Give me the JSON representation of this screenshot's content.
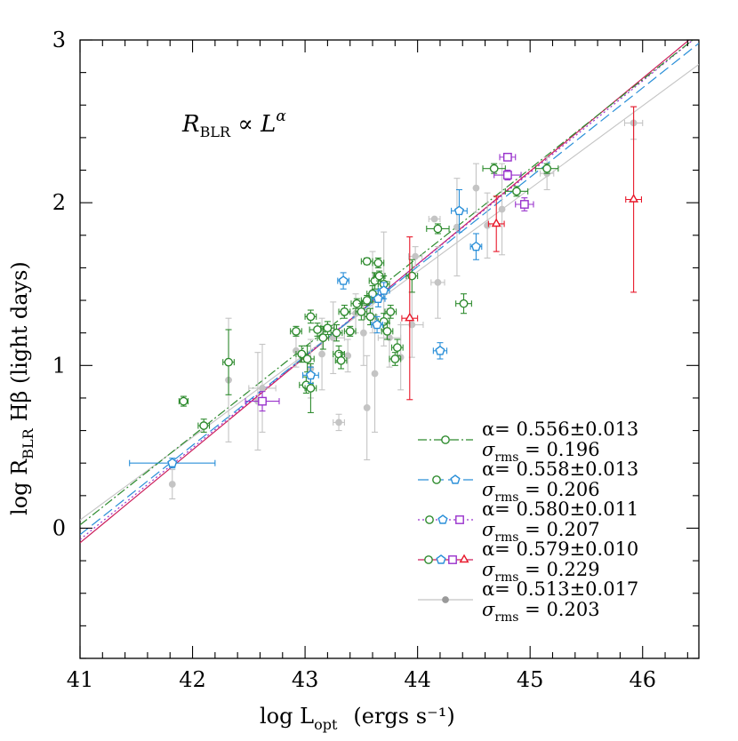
{
  "chart_data": {
    "type": "scatter",
    "xlabel": {
      "main": "log L",
      "sub": "opt",
      "unit": "(ergs s⁻¹)"
    },
    "ylabel": {
      "main": "log R",
      "sub": "BLR",
      "tail": "Hβ  (light days)"
    },
    "annotation": {
      "r": "R",
      "sub": "BLR",
      "rel": " ∝ L",
      "sup": "α"
    },
    "xlim": [
      41,
      46.5
    ],
    "ylim": [
      -0.8,
      3
    ],
    "xticks": [
      41,
      42,
      43,
      44,
      45,
      46
    ],
    "xtick_labels": [
      "41",
      "42",
      "43",
      "44",
      "45",
      "46"
    ],
    "yticks": [
      0,
      1,
      2,
      3
    ],
    "ytick_labels": [
      "0",
      "1",
      "2",
      "3"
    ],
    "colors": {
      "green": "#2e8b2e",
      "blue": "#2a8fd8",
      "purple": "#9932cc",
      "red": "#e8182a",
      "gray": "#c4c4c4",
      "crimson": "#cc1d5a"
    },
    "fits": [
      {
        "name": "green",
        "color": "#2e8b2e",
        "dash": "10,3,2,3",
        "alpha": "α=  0.556±0.013",
        "sigma_label": "σ",
        "sigma_sub": "rms",
        "sigma_val": " =  0.196",
        "markers": [
          "circle"
        ],
        "x": [
          41,
          46.5
        ],
        "y": [
          0.02,
          3.03
        ]
      },
      {
        "name": "blue",
        "color": "#2a8fd8",
        "dash": "12,5",
        "alpha": "α=  0.558±0.013",
        "sigma_label": "σ",
        "sigma_sub": "rms",
        "sigma_val": " =  0.206",
        "markers": [
          "circle",
          "pentagon"
        ],
        "x": [
          41,
          46.5
        ],
        "y": [
          -0.04,
          2.98
        ]
      },
      {
        "name": "purple",
        "color": "#9932cc",
        "dash": "2,3",
        "alpha": "α=  0.580±0.011",
        "sigma_label": "σ",
        "sigma_sub": "rms",
        "sigma_val": " =  0.207",
        "markers": [
          "circle",
          "pentagon",
          "square"
        ],
        "x": [
          41,
          46.5
        ],
        "y": [
          -0.07,
          3.03
        ]
      },
      {
        "name": "red",
        "color": "#cc1d5a",
        "dash": "",
        "alpha": "α=  0.579±0.010",
        "sigma_label": "σ",
        "sigma_sub": "rms",
        "sigma_val": " =  0.229",
        "markers": [
          "circle",
          "pentagon",
          "square",
          "triangle"
        ],
        "x": [
          41,
          46.5
        ],
        "y": [
          -0.09,
          3.05
        ]
      },
      {
        "name": "gray",
        "color": "#c4c4c4",
        "dash": "",
        "alpha": "α=  0.513±0.017",
        "sigma_label": "σ",
        "sigma_sub": "rms",
        "sigma_val": " =  0.203",
        "markers": [
          "dot"
        ],
        "x": [
          41,
          46.5
        ],
        "y": [
          0.05,
          2.85
        ]
      }
    ],
    "points": {
      "gray": [
        [
          41.82,
          0.27,
          0,
          0.09
        ],
        [
          42.32,
          0.91,
          0,
          0.38
        ],
        [
          42.62,
          0.86,
          0.12,
          0.27
        ],
        [
          42.92,
          1.09,
          0,
          0.1
        ],
        [
          43.05,
          0.98,
          0,
          0.18
        ],
        [
          43.15,
          1.07,
          0,
          0.22
        ],
        [
          43.25,
          1.17,
          0.1,
          0.22
        ],
        [
          43.3,
          0.65,
          0.05,
          0.05
        ],
        [
          43.38,
          1.06,
          0,
          0.1
        ],
        [
          43.45,
          1.32,
          0.12,
          0.12
        ],
        [
          43.52,
          1.2,
          0,
          0.2
        ],
        [
          43.55,
          0.74,
          0,
          0.32
        ],
        [
          43.62,
          0.95,
          0,
          0.36
        ],
        [
          43.7,
          1.47,
          0,
          0.35
        ],
        [
          43.75,
          1.17,
          0.1,
          0.18
        ],
        [
          43.85,
          1.05,
          0,
          0.2
        ],
        [
          43.95,
          1.25,
          0.1,
          0.2
        ],
        [
          43.98,
          1.67,
          0.06,
          0.06
        ],
        [
          44.15,
          1.9,
          0.05,
          0
        ],
        [
          44.18,
          1.51,
          0.06,
          0.22
        ],
        [
          44.35,
          1.85,
          0,
          0.3
        ],
        [
          44.52,
          2.09,
          0,
          0.15
        ],
        [
          44.62,
          1.86,
          0,
          0.2
        ],
        [
          44.75,
          1.96,
          0,
          0.28
        ],
        [
          45.15,
          2.18,
          0.06,
          0.1
        ],
        [
          45.92,
          2.49,
          0.08,
          0.1
        ],
        [
          42.58,
          0.78,
          0,
          0.3
        ],
        [
          43.6,
          1.45,
          0,
          0.25
        ]
      ],
      "green": [
        [
          41.92,
          0.78,
          0.04,
          0.03
        ],
        [
          42.1,
          0.63,
          0.05,
          0.04
        ],
        [
          42.32,
          1.02,
          0.05,
          0.2
        ],
        [
          42.92,
          1.21,
          0.05,
          0.03
        ],
        [
          42.97,
          1.07,
          0.05,
          0.05
        ],
        [
          43.01,
          0.88,
          0.06,
          0.05
        ],
        [
          43.02,
          1.04,
          0.06,
          0.08
        ],
        [
          43.05,
          1.3,
          0.05,
          0.04
        ],
        [
          43.05,
          0.86,
          0.05,
          0.15
        ],
        [
          43.11,
          1.22,
          0.07,
          0.04
        ],
        [
          43.16,
          1.17,
          0.05,
          0.07
        ],
        [
          43.2,
          1.23,
          0.06,
          0.04
        ],
        [
          43.28,
          1.2,
          0.05,
          0.05
        ],
        [
          43.3,
          1.07,
          0.05,
          0.05
        ],
        [
          43.32,
          1.03,
          0.05,
          0.05
        ],
        [
          43.35,
          1.33,
          0.05,
          0.04
        ],
        [
          43.4,
          1.21,
          0.05,
          0.03
        ],
        [
          43.46,
          1.38,
          0.05,
          0.03
        ],
        [
          43.5,
          1.33,
          0.05,
          0.05
        ],
        [
          43.55,
          1.64,
          0.05,
          0.02
        ],
        [
          43.55,
          1.4,
          0.05,
          0.03
        ],
        [
          43.6,
          1.44,
          0.05,
          0.05
        ],
        [
          43.62,
          1.52,
          0.05,
          0.05
        ],
        [
          43.65,
          1.63,
          0.05,
          0.03
        ],
        [
          43.66,
          1.55,
          0.05,
          0.03
        ],
        [
          43.7,
          1.5,
          0.05,
          0.05
        ],
        [
          43.7,
          1.27,
          0.05,
          0.05
        ],
        [
          43.73,
          1.21,
          0.05,
          0.05
        ],
        [
          43.76,
          1.33,
          0.05,
          0.04
        ],
        [
          43.82,
          1.11,
          0.05,
          0.05
        ],
        [
          43.8,
          1.04,
          0.05,
          0.04
        ],
        [
          43.95,
          1.55,
          0.05,
          0.1
        ],
        [
          44.18,
          1.84,
          0.1,
          0.03
        ],
        [
          44.41,
          1.38,
          0.07,
          0.06
        ],
        [
          44.68,
          2.21,
          0.1,
          0.03
        ],
        [
          44.88,
          2.07,
          0.1,
          0.03
        ],
        [
          45.15,
          2.21,
          0.1,
          0.03
        ],
        [
          43.58,
          1.3,
          0.05,
          0.05
        ]
      ],
      "blue": [
        [
          41.82,
          0.4,
          0.38,
          0.03
        ],
        [
          43.05,
          0.94,
          0.07,
          0.05
        ],
        [
          43.34,
          1.52,
          0.05,
          0.05
        ],
        [
          43.64,
          1.25,
          0.05,
          0.05
        ],
        [
          43.65,
          1.41,
          0.06,
          0.05
        ],
        [
          43.7,
          1.46,
          0.05,
          0.05
        ],
        [
          44.2,
          1.09,
          0.06,
          0.05
        ],
        [
          44.37,
          1.95,
          0.07,
          0.13
        ],
        [
          44.52,
          1.73,
          0.05,
          0.08
        ]
      ],
      "purple": [
        [
          42.62,
          0.78,
          0.15,
          0.06
        ],
        [
          44.8,
          2.28,
          0.07,
          0.02
        ],
        [
          44.8,
          2.17,
          0.12,
          0.03
        ],
        [
          44.95,
          1.99,
          0.08,
          0.04
        ]
      ],
      "red": [
        [
          43.93,
          1.29,
          0.07,
          0.5
        ],
        [
          44.7,
          1.87,
          0.07,
          0.17
        ],
        [
          45.92,
          2.02,
          0.07,
          0.57
        ]
      ]
    }
  }
}
